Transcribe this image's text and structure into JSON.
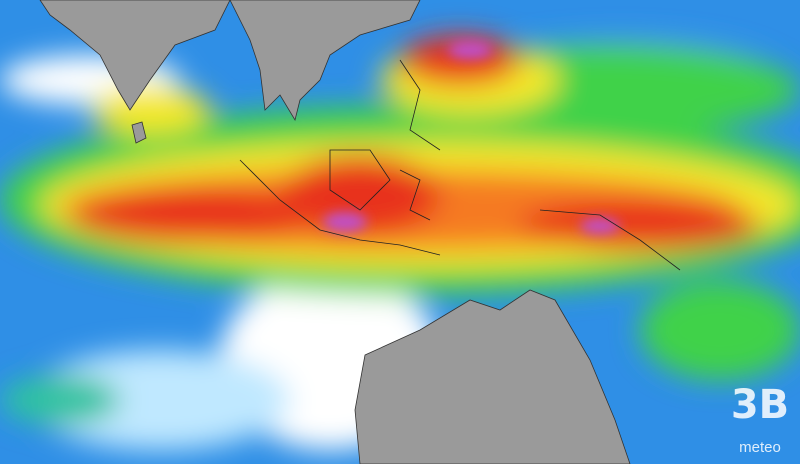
{
  "logo": {
    "brand": "3B",
    "name": "meteo"
  }
}
